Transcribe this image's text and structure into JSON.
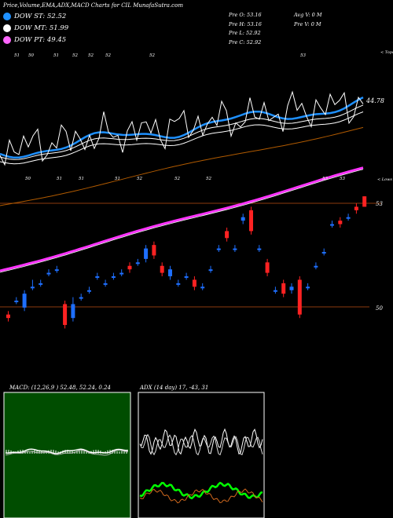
{
  "header": {
    "title": "Price,Volume,EMA,ADX,MACD Charts for CIL MunafaSutra.com"
  },
  "legend": [
    {
      "label": "DOW ST: 52.52",
      "color": "#1e90ff"
    },
    {
      "label": "DOW MT: 51.99",
      "color": "#ffffff"
    },
    {
      "label": "DOW PT: 49.45",
      "color": "#ff66ff"
    }
  ],
  "stats": {
    "prev": [
      "Pre O: 53.16",
      "Pre H: 53.16",
      "Pre L: 52.92",
      "Pre C: 52.92"
    ],
    "volume": [
      "Avg V: 0 M",
      "Pre V: 0 M"
    ]
  },
  "chart_data": [
    {
      "type": "candlestick",
      "title": "",
      "annotations": {
        "top_right": "< Tops",
        "lower_right": "< Lows",
        "ema_label": "44.78"
      },
      "axis_right_labels": [
        "53",
        "50"
      ],
      "tops_labels": [
        "51",
        "50",
        "51",
        "52",
        "52",
        "52",
        "52",
        "53"
      ],
      "lows_labels": [
        "50",
        "51",
        "51",
        "51",
        "52",
        "52",
        "52",
        "53",
        "53"
      ],
      "candles": [
        {
          "o": 49.8,
          "c": 49.7,
          "h": 49.9,
          "l": 49.6
        },
        {
          "o": 50.2,
          "c": 50.2,
          "h": 50.3,
          "l": 50.1
        },
        {
          "o": 50.0,
          "c": 50.4,
          "h": 50.5,
          "l": 49.9
        },
        {
          "o": 50.6,
          "c": 50.6,
          "h": 50.8,
          "l": 50.5
        },
        {
          "o": 50.7,
          "c": 50.7,
          "h": 50.8,
          "l": 50.6
        },
        {
          "o": 51.0,
          "c": 51.0,
          "h": 51.1,
          "l": 50.9
        },
        {
          "o": 51.1,
          "c": 51.1,
          "h": 51.2,
          "l": 51.0
        },
        {
          "o": 50.1,
          "c": 49.5,
          "h": 50.2,
          "l": 49.4
        },
        {
          "o": 49.7,
          "c": 50.1,
          "h": 50.3,
          "l": 49.6
        },
        {
          "o": 50.3,
          "c": 50.3,
          "h": 50.4,
          "l": 50.2
        },
        {
          "o": 50.5,
          "c": 50.5,
          "h": 50.6,
          "l": 50.4
        },
        {
          "o": 50.9,
          "c": 50.9,
          "h": 51.0,
          "l": 50.8
        },
        {
          "o": 50.7,
          "c": 50.7,
          "h": 50.8,
          "l": 50.6
        },
        {
          "o": 50.9,
          "c": 50.9,
          "h": 51.0,
          "l": 50.8
        },
        {
          "o": 51.0,
          "c": 51.0,
          "h": 51.1,
          "l": 50.9
        },
        {
          "o": 51.2,
          "c": 51.1,
          "h": 51.3,
          "l": 51.0
        },
        {
          "o": 51.3,
          "c": 51.3,
          "h": 51.4,
          "l": 51.2
        },
        {
          "o": 51.4,
          "c": 51.7,
          "h": 51.8,
          "l": 51.3
        },
        {
          "o": 51.8,
          "c": 51.5,
          "h": 51.9,
          "l": 51.4
        },
        {
          "o": 51.2,
          "c": 51.0,
          "h": 51.3,
          "l": 50.9
        },
        {
          "o": 50.9,
          "c": 51.1,
          "h": 51.2,
          "l": 50.8
        },
        {
          "o": 50.7,
          "c": 50.7,
          "h": 50.8,
          "l": 50.6
        },
        {
          "o": 50.9,
          "c": 50.9,
          "h": 51.0,
          "l": 50.8
        },
        {
          "o": 50.8,
          "c": 50.6,
          "h": 50.9,
          "l": 50.5
        },
        {
          "o": 50.6,
          "c": 50.6,
          "h": 50.7,
          "l": 50.5
        },
        {
          "o": 51.1,
          "c": 51.1,
          "h": 51.2,
          "l": 51.0
        },
        {
          "o": 51.7,
          "c": 51.7,
          "h": 51.8,
          "l": 51.6
        },
        {
          "o": 52.2,
          "c": 52.0,
          "h": 52.3,
          "l": 51.9
        },
        {
          "o": 51.7,
          "c": 51.7,
          "h": 51.8,
          "l": 51.6
        },
        {
          "o": 52.5,
          "c": 52.6,
          "h": 52.7,
          "l": 52.4
        },
        {
          "o": 52.8,
          "c": 52.2,
          "h": 52.9,
          "l": 52.1
        },
        {
          "o": 51.7,
          "c": 51.7,
          "h": 51.8,
          "l": 51.6
        },
        {
          "o": 51.3,
          "c": 51.0,
          "h": 51.4,
          "l": 50.9
        },
        {
          "o": 50.5,
          "c": 50.5,
          "h": 50.6,
          "l": 50.4
        },
        {
          "o": 50.7,
          "c": 50.4,
          "h": 50.8,
          "l": 50.3
        },
        {
          "o": 50.5,
          "c": 50.6,
          "h": 50.7,
          "l": 50.4
        },
        {
          "o": 50.8,
          "c": 49.8,
          "h": 50.9,
          "l": 49.7
        },
        {
          "o": 50.6,
          "c": 50.6,
          "h": 50.7,
          "l": 50.5
        },
        {
          "o": 51.2,
          "c": 51.2,
          "h": 51.3,
          "l": 51.1
        },
        {
          "o": 51.6,
          "c": 51.6,
          "h": 51.7,
          "l": 51.5
        },
        {
          "o": 52.4,
          "c": 52.4,
          "h": 52.5,
          "l": 52.3
        },
        {
          "o": 52.5,
          "c": 52.4,
          "h": 52.6,
          "l": 52.3
        },
        {
          "o": 52.6,
          "c": 52.6,
          "h": 52.7,
          "l": 52.5
        },
        {
          "o": 52.9,
          "c": 52.8,
          "h": 53.0,
          "l": 52.7
        },
        {
          "o": 53.2,
          "c": 52.9,
          "h": 53.2,
          "l": 52.9
        }
      ],
      "colors": {
        "up": "#1e6fff",
        "down": "#ff2222",
        "ema_long": "#ff33ff",
        "ema_mid": "#ffffff",
        "ema_short": "#1e90ff",
        "ema_trend": "#b05a00",
        "ref_line": "#8b3a0e"
      }
    },
    {
      "type": "line",
      "title": "MACD",
      "label": "MACD: (12,26,9 ) 52.48, 52.24, 0.24",
      "background": "#004d00"
    },
    {
      "type": "line",
      "title": "ADX",
      "label": "ADX (14 day) 17, -43, 31",
      "background": "#000000"
    }
  ]
}
